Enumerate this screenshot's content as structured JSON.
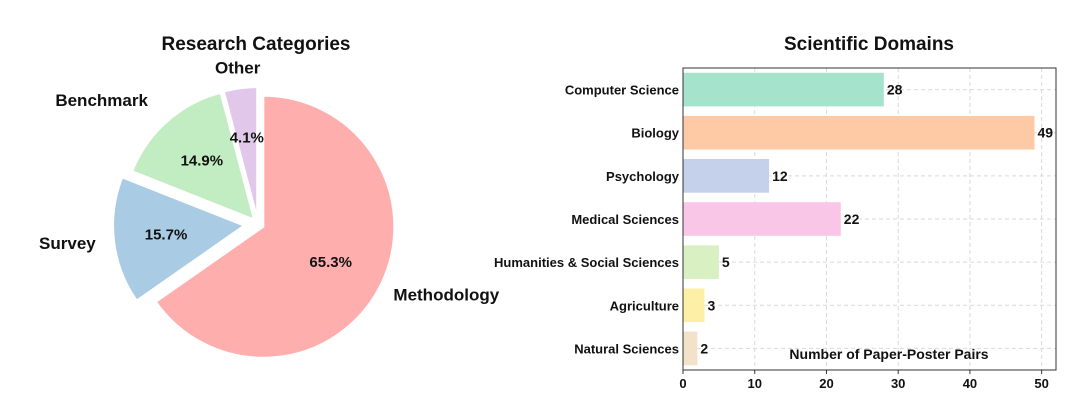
{
  "chart_data": [
    {
      "type": "pie",
      "title": "Research Categories",
      "slices": [
        {
          "label": "Methodology",
          "value": 65.3,
          "pct_label": "65.3%",
          "color": "#ffaeae"
        },
        {
          "label": "Survey",
          "value": 15.7,
          "pct_label": "15.7%",
          "color": "#a9cbe4"
        },
        {
          "label": "Benchmark",
          "value": 14.9,
          "pct_label": "14.9%",
          "color": "#c2ecc2"
        },
        {
          "label": "Other",
          "value": 4.1,
          "pct_label": "4.1%",
          "color": "#e1c8ea"
        }
      ],
      "start_angle_deg": 90,
      "direction": "clockwise",
      "exploded": true
    },
    {
      "type": "bar",
      "orientation": "horizontal",
      "title": "Scientific Domains",
      "xlabel": "Number of Paper-Poster Pairs",
      "ylabel": "",
      "xlim": [
        0,
        52
      ],
      "xticks": [
        0,
        10,
        20,
        30,
        40,
        50
      ],
      "grid": true,
      "categories": [
        "Computer Science",
        "Biology",
        "Psychology",
        "Medical Sciences",
        "Humanities & Social Sciences",
        "Agriculture",
        "Natural Sciences"
      ],
      "values": [
        28,
        49,
        12,
        22,
        5,
        3,
        2
      ],
      "colors": [
        "#a6e3cd",
        "#fec9a5",
        "#c5d1ea",
        "#f9c6e7",
        "#d9f1c2",
        "#fdf0a6",
        "#f3e1c9"
      ]
    }
  ]
}
